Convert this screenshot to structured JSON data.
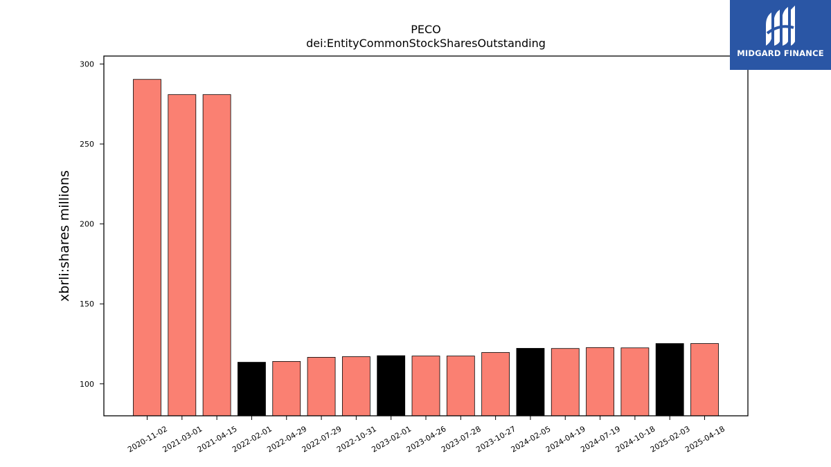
{
  "logo": {
    "text": "MIDGARD FINANCE"
  },
  "chart_data": {
    "type": "bar",
    "title": "PECO",
    "subtitle": "dei:EntityCommonStockSharesOutstanding",
    "xlabel": "",
    "ylabel": "xbrli:shares millions",
    "ylim": [
      80,
      305
    ],
    "yticks": [
      100,
      150,
      200,
      250,
      300
    ],
    "grid": false,
    "colors": {
      "default": "#fa8072",
      "highlight": "#000000"
    },
    "categories": [
      "2020-11-02",
      "2021-03-01",
      "2021-04-15",
      "2022-02-01",
      "2022-04-29",
      "2022-07-29",
      "2022-10-31",
      "2023-02-01",
      "2023-04-26",
      "2023-07-28",
      "2023-10-27",
      "2024-02-05",
      "2024-04-19",
      "2024-07-19",
      "2024-10-18",
      "2025-02-03",
      "2025-04-18"
    ],
    "values": [
      290.4,
      280.9,
      280.9,
      113.5,
      114.0,
      116.6,
      117.0,
      117.6,
      117.4,
      117.4,
      119.6,
      122.2,
      122.1,
      122.7,
      122.5,
      125.2,
      125.2
    ],
    "highlight": [
      false,
      false,
      false,
      true,
      false,
      false,
      false,
      true,
      false,
      false,
      false,
      true,
      false,
      false,
      false,
      true,
      false
    ]
  }
}
